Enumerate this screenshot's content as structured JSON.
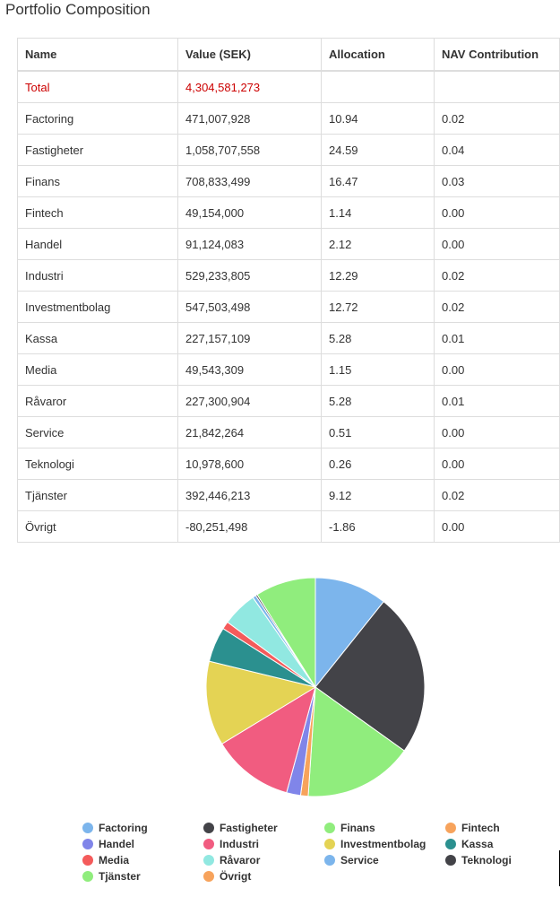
{
  "page": {
    "title": "Portfolio Composition"
  },
  "table": {
    "headers": [
      "Name",
      "Value (SEK)",
      "Allocation",
      "NAV Contribution"
    ],
    "total": {
      "name": "Total",
      "value": "4,304,581,273",
      "allocation": "",
      "nav": ""
    },
    "rows": [
      {
        "name": "Factoring",
        "value": "471,007,928",
        "allocation": "10.94",
        "nav": "0.02"
      },
      {
        "name": "Fastigheter",
        "value": "1,058,707,558",
        "allocation": "24.59",
        "nav": "0.04"
      },
      {
        "name": "Finans",
        "value": "708,833,499",
        "allocation": "16.47",
        "nav": "0.03"
      },
      {
        "name": "Fintech",
        "value": "49,154,000",
        "allocation": "1.14",
        "nav": "0.00"
      },
      {
        "name": "Handel",
        "value": "91,124,083",
        "allocation": "2.12",
        "nav": "0.00"
      },
      {
        "name": "Industri",
        "value": "529,233,805",
        "allocation": "12.29",
        "nav": "0.02"
      },
      {
        "name": "Investmentbolag",
        "value": "547,503,498",
        "allocation": "12.72",
        "nav": "0.02"
      },
      {
        "name": "Kassa",
        "value": "227,157,109",
        "allocation": "5.28",
        "nav": "0.01"
      },
      {
        "name": "Media",
        "value": "49,543,309",
        "allocation": "1.15",
        "nav": "0.00"
      },
      {
        "name": "Råvaror",
        "value": "227,300,904",
        "allocation": "5.28",
        "nav": "0.01"
      },
      {
        "name": "Service",
        "value": "21,842,264",
        "allocation": "0.51",
        "nav": "0.00"
      },
      {
        "name": "Teknologi",
        "value": "10,978,600",
        "allocation": "0.26",
        "nav": "0.00"
      },
      {
        "name": "Tjänster",
        "value": "392,446,213",
        "allocation": "9.12",
        "nav": "0.02"
      },
      {
        "name": "Övrigt",
        "value": "-80,251,498",
        "allocation": "-1.86",
        "nav": "0.00"
      }
    ]
  },
  "chart_data": {
    "type": "pie",
    "categories": [
      "Factoring",
      "Fastigheter",
      "Finans",
      "Fintech",
      "Handel",
      "Industri",
      "Investmentbolag",
      "Kassa",
      "Media",
      "Råvaror",
      "Service",
      "Teknologi",
      "Tjänster",
      "Övrigt"
    ],
    "values": [
      471007928,
      1058707558,
      708833499,
      49154000,
      91124083,
      529233805,
      547503498,
      227157109,
      49543309,
      227300904,
      21842264,
      10978600,
      392446213,
      -80251498
    ],
    "colors": [
      "#7cb5ec",
      "#434348",
      "#90ed7d",
      "#f7a35c",
      "#8085e9",
      "#f15c80",
      "#e4d354",
      "#2b908f",
      "#f45b5b",
      "#91e8e1",
      "#7cb5ec",
      "#434348",
      "#90ed7d",
      "#f7a35c"
    ],
    "legend_position": "bottom"
  }
}
